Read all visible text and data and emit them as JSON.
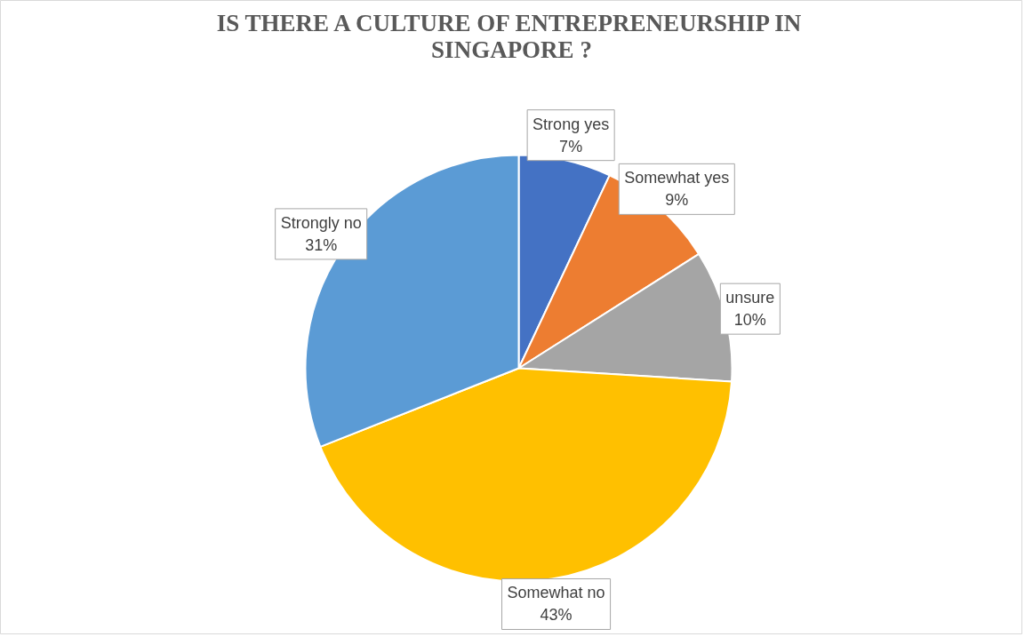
{
  "chart_data": {
    "type": "pie",
    "title": "IS THERE A CULTURE OF ENTREPRENEURSHIP IN SINGAPORE ?",
    "categories": [
      "Strong yes",
      "Somewhat yes",
      "unsure",
      "Somewhat no",
      "Strongly no"
    ],
    "values": [
      7,
      9,
      10,
      43,
      31
    ],
    "value_labels": [
      "7%",
      "9%",
      "10%",
      "43%",
      "31%"
    ],
    "colors": [
      "#4472c4",
      "#ed7d31",
      "#a5a5a5",
      "#ffc000",
      "#5b9bd5"
    ]
  }
}
